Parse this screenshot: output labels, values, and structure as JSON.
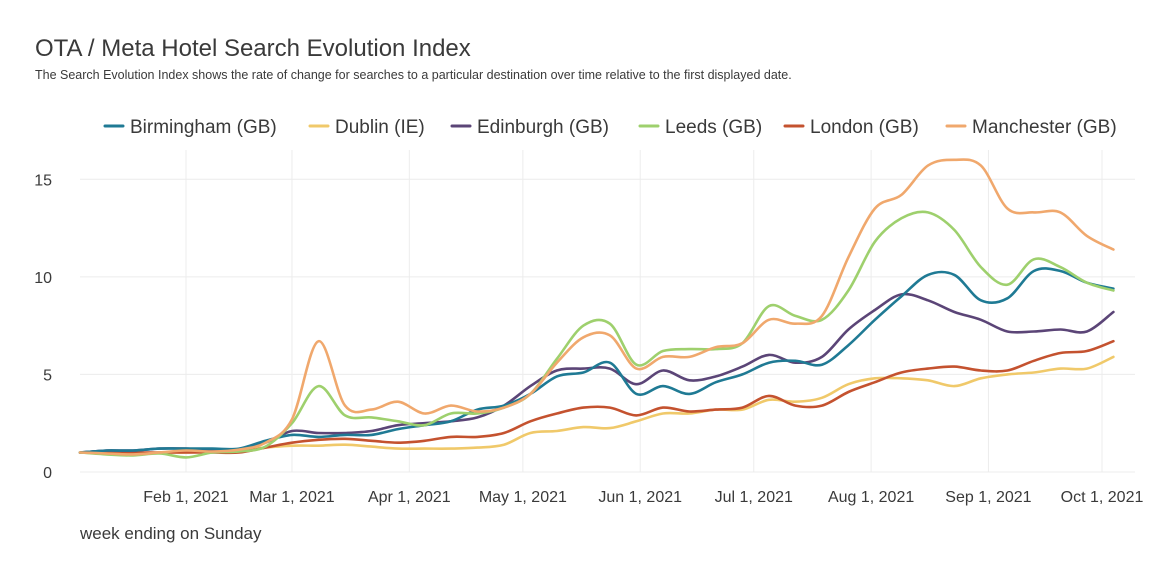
{
  "chart_data": {
    "type": "line",
    "title": "OTA / Meta Hotel Search Evolution Index",
    "subtitle": "The Search Evolution Index shows the rate of change for searches to a particular destination over time relative to the first displayed date.",
    "xlabel": "week ending on Sunday",
    "ylabel": "",
    "ylim": [
      0,
      16.5
    ],
    "yticks": [
      0,
      5,
      10,
      15
    ],
    "x_start_day": 0,
    "x_end_day": 270,
    "xticks": [
      {
        "day": 28,
        "label": "Feb 1, 2021"
      },
      {
        "day": 56,
        "label": "Mar 1, 2021"
      },
      {
        "day": 87,
        "label": "Apr 1, 2021"
      },
      {
        "day": 117,
        "label": "May 1, 2021"
      },
      {
        "day": 148,
        "label": "Jun 1, 2021"
      },
      {
        "day": 178,
        "label": "Jul 1, 2021"
      },
      {
        "day": 209,
        "label": "Aug 1, 2021"
      },
      {
        "day": 240,
        "label": "Sep 1, 2021"
      },
      {
        "day": 270,
        "label": "Oct 1, 2021"
      }
    ],
    "x_days": [
      0,
      7,
      14,
      21,
      28,
      35,
      42,
      49,
      56,
      63,
      70,
      77,
      84,
      91,
      98,
      105,
      112,
      119,
      126,
      133,
      140,
      147,
      154,
      161,
      168,
      175,
      182,
      189,
      196,
      203,
      210,
      217,
      224,
      231,
      238,
      245,
      252,
      259,
      266,
      273
    ],
    "series": [
      {
        "name": "Birmingham (GB)",
        "color": "#1f7a94",
        "values": [
          1.0,
          1.1,
          1.1,
          1.2,
          1.2,
          1.2,
          1.2,
          1.6,
          1.9,
          1.8,
          1.9,
          1.9,
          2.2,
          2.4,
          2.6,
          3.2,
          3.4,
          4.0,
          4.9,
          5.1,
          5.6,
          4.0,
          4.4,
          4.0,
          4.6,
          5.0,
          5.6,
          5.7,
          5.5,
          6.5,
          7.8,
          9.0,
          10.1,
          10.1,
          8.8,
          8.9,
          10.3,
          10.3,
          9.7,
          9.4
        ]
      },
      {
        "name": "Dublin (IE)",
        "color": "#f0c96a",
        "values": [
          1.0,
          1.0,
          0.95,
          1.0,
          1.0,
          1.05,
          1.1,
          1.25,
          1.35,
          1.35,
          1.4,
          1.3,
          1.2,
          1.2,
          1.2,
          1.25,
          1.4,
          2.0,
          2.1,
          2.3,
          2.25,
          2.6,
          3.0,
          3.0,
          3.2,
          3.2,
          3.7,
          3.6,
          3.8,
          4.5,
          4.8,
          4.8,
          4.7,
          4.4,
          4.8,
          5.0,
          5.1,
          5.3,
          5.3,
          5.9
        ]
      },
      {
        "name": "Edinburgh (GB)",
        "color": "#5b4577",
        "values": [
          1.0,
          1.1,
          1.1,
          1.2,
          1.2,
          1.1,
          1.1,
          1.5,
          2.1,
          2.0,
          2.0,
          2.1,
          2.4,
          2.5,
          2.6,
          2.8,
          3.4,
          4.4,
          5.2,
          5.3,
          5.3,
          4.5,
          5.2,
          4.7,
          4.9,
          5.4,
          6.0,
          5.6,
          5.9,
          7.3,
          8.3,
          9.1,
          8.8,
          8.2,
          7.8,
          7.2,
          7.2,
          7.3,
          7.2,
          8.2
        ]
      },
      {
        "name": "Leeds (GB)",
        "color": "#9ed06d",
        "values": [
          1.0,
          0.9,
          0.85,
          0.95,
          0.75,
          1.0,
          1.05,
          1.3,
          2.5,
          4.4,
          2.9,
          2.8,
          2.6,
          2.4,
          3.0,
          3.0,
          3.3,
          4.0,
          5.8,
          7.5,
          7.6,
          5.5,
          6.2,
          6.3,
          6.3,
          6.6,
          8.5,
          8.0,
          7.8,
          9.3,
          11.8,
          13.0,
          13.3,
          12.4,
          10.5,
          9.6,
          10.9,
          10.5,
          9.7,
          9.3
        ]
      },
      {
        "name": "London (GB)",
        "color": "#c4522f",
        "values": [
          1.0,
          1.0,
          1.0,
          1.0,
          1.0,
          1.0,
          1.0,
          1.25,
          1.5,
          1.65,
          1.7,
          1.6,
          1.5,
          1.6,
          1.8,
          1.8,
          2.0,
          2.6,
          3.0,
          3.3,
          3.3,
          2.9,
          3.3,
          3.1,
          3.2,
          3.3,
          3.9,
          3.4,
          3.4,
          4.1,
          4.6,
          5.1,
          5.3,
          5.4,
          5.2,
          5.2,
          5.7,
          6.1,
          6.2,
          6.7
        ]
      },
      {
        "name": "Manchester (GB)",
        "color": "#f0a86d",
        "values": [
          1.0,
          0.95,
          0.9,
          1.0,
          1.1,
          1.05,
          1.15,
          1.5,
          2.7,
          6.7,
          3.4,
          3.2,
          3.6,
          3.0,
          3.4,
          3.1,
          3.3,
          4.0,
          5.6,
          6.9,
          7.0,
          5.3,
          5.9,
          5.9,
          6.4,
          6.6,
          7.8,
          7.6,
          8.0,
          11.0,
          13.5,
          14.2,
          15.7,
          16.0,
          15.7,
          13.5,
          13.3,
          13.3,
          12.1,
          11.4
        ]
      }
    ]
  }
}
